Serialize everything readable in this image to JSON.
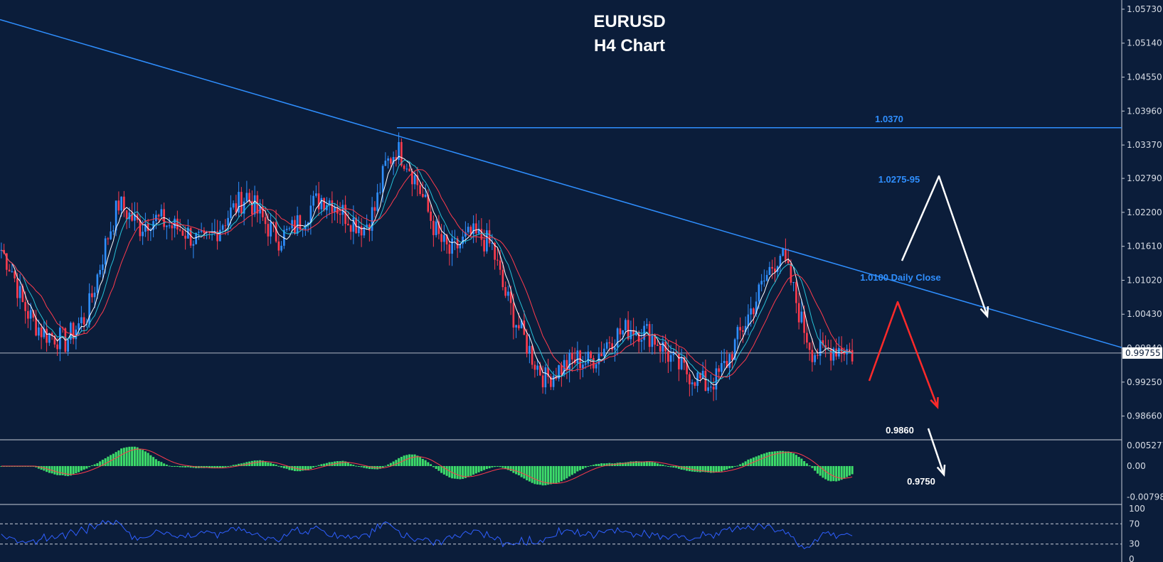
{
  "chart_data": {
    "type": "candlestick",
    "title": "EURUSD",
    "subtitle": "H4 Chart",
    "price_axis": {
      "ticks": [
        "1.05730",
        "1.05140",
        "1.04550",
        "1.03960",
        "1.03370",
        "1.02790",
        "1.02200",
        "1.01610",
        "1.01020",
        "1.00430",
        "0.99840",
        "0.99250",
        "0.98660"
      ],
      "ylim": [
        0.9826,
        1.0589
      ],
      "current_price": "0.99755"
    },
    "levels": [
      {
        "label": "1.0370",
        "value": 1.0367
      },
      {
        "label": "1.0275-95",
        "value": 1.0282
      },
      {
        "label": "1.0100 Daily Close",
        "value": 1.0115
      },
      {
        "label": "0.9860",
        "value": 0.986
      },
      {
        "label": "0.9750",
        "value": 0.975
      }
    ],
    "trendline": {
      "start_price": 1.0555,
      "end_price": 0.9985
    },
    "candles_overview": [
      1.0155,
      1.012,
      1.006,
      1.003,
      1.001,
      1.0005,
      0.9995,
      1.002,
      1.004,
      1.011,
      1.018,
      1.0235,
      1.0215,
      1.0195,
      1.021,
      1.0205,
      1.0195,
      1.019,
      1.0175,
      1.0165,
      1.0185,
      1.021,
      1.023,
      1.025,
      1.022,
      1.0195,
      1.0175,
      1.0185,
      1.0205,
      1.023,
      1.0245,
      1.024,
      1.022,
      1.0205,
      1.0195,
      1.0225,
      1.03,
      1.033,
      1.031,
      1.027,
      1.022,
      1.0175,
      1.015,
      1.0165,
      1.018,
      1.0175,
      1.016,
      1.009,
      1.004,
      1.0,
      0.996,
      0.993,
      0.9945,
      0.9955,
      0.9965,
      0.996,
      0.9975,
      1.0,
      1.001,
      1.002,
      1.0015,
      1.0005,
      0.9985,
      0.996,
      0.9945,
      0.9935,
      0.992,
      0.993,
      0.996,
      1.0,
      1.004,
      1.008,
      1.012,
      1.015,
      1.01,
      1.003,
      0.998,
      0.9975,
      0.9985,
      0.9985,
      0.997
    ],
    "macd": {
      "ticks": [
        "0.005277",
        "0.00",
        "-0.007987"
      ],
      "ylim": [
        -0.0095,
        0.0062
      ]
    },
    "rsi": {
      "ticks": [
        "100",
        "70",
        "30",
        "0"
      ],
      "levels": [
        70,
        30
      ]
    }
  },
  "colors": {
    "background": "#0b1d3a",
    "bull": "#2f8fff",
    "bear": "#ff3b4d",
    "trend": "#2f8fff",
    "text": "#ffffff",
    "macd_hist": "#3ddc6a",
    "macd_signal": "#ff3b4d",
    "rsi_line": "#2f5fff",
    "arrow_white": "#ffffff",
    "arrow_red": "#ff2a2a",
    "ma_white": "#ffffff",
    "ma_cyan": "#27c2d8",
    "ma_red": "#ff3b4d"
  }
}
